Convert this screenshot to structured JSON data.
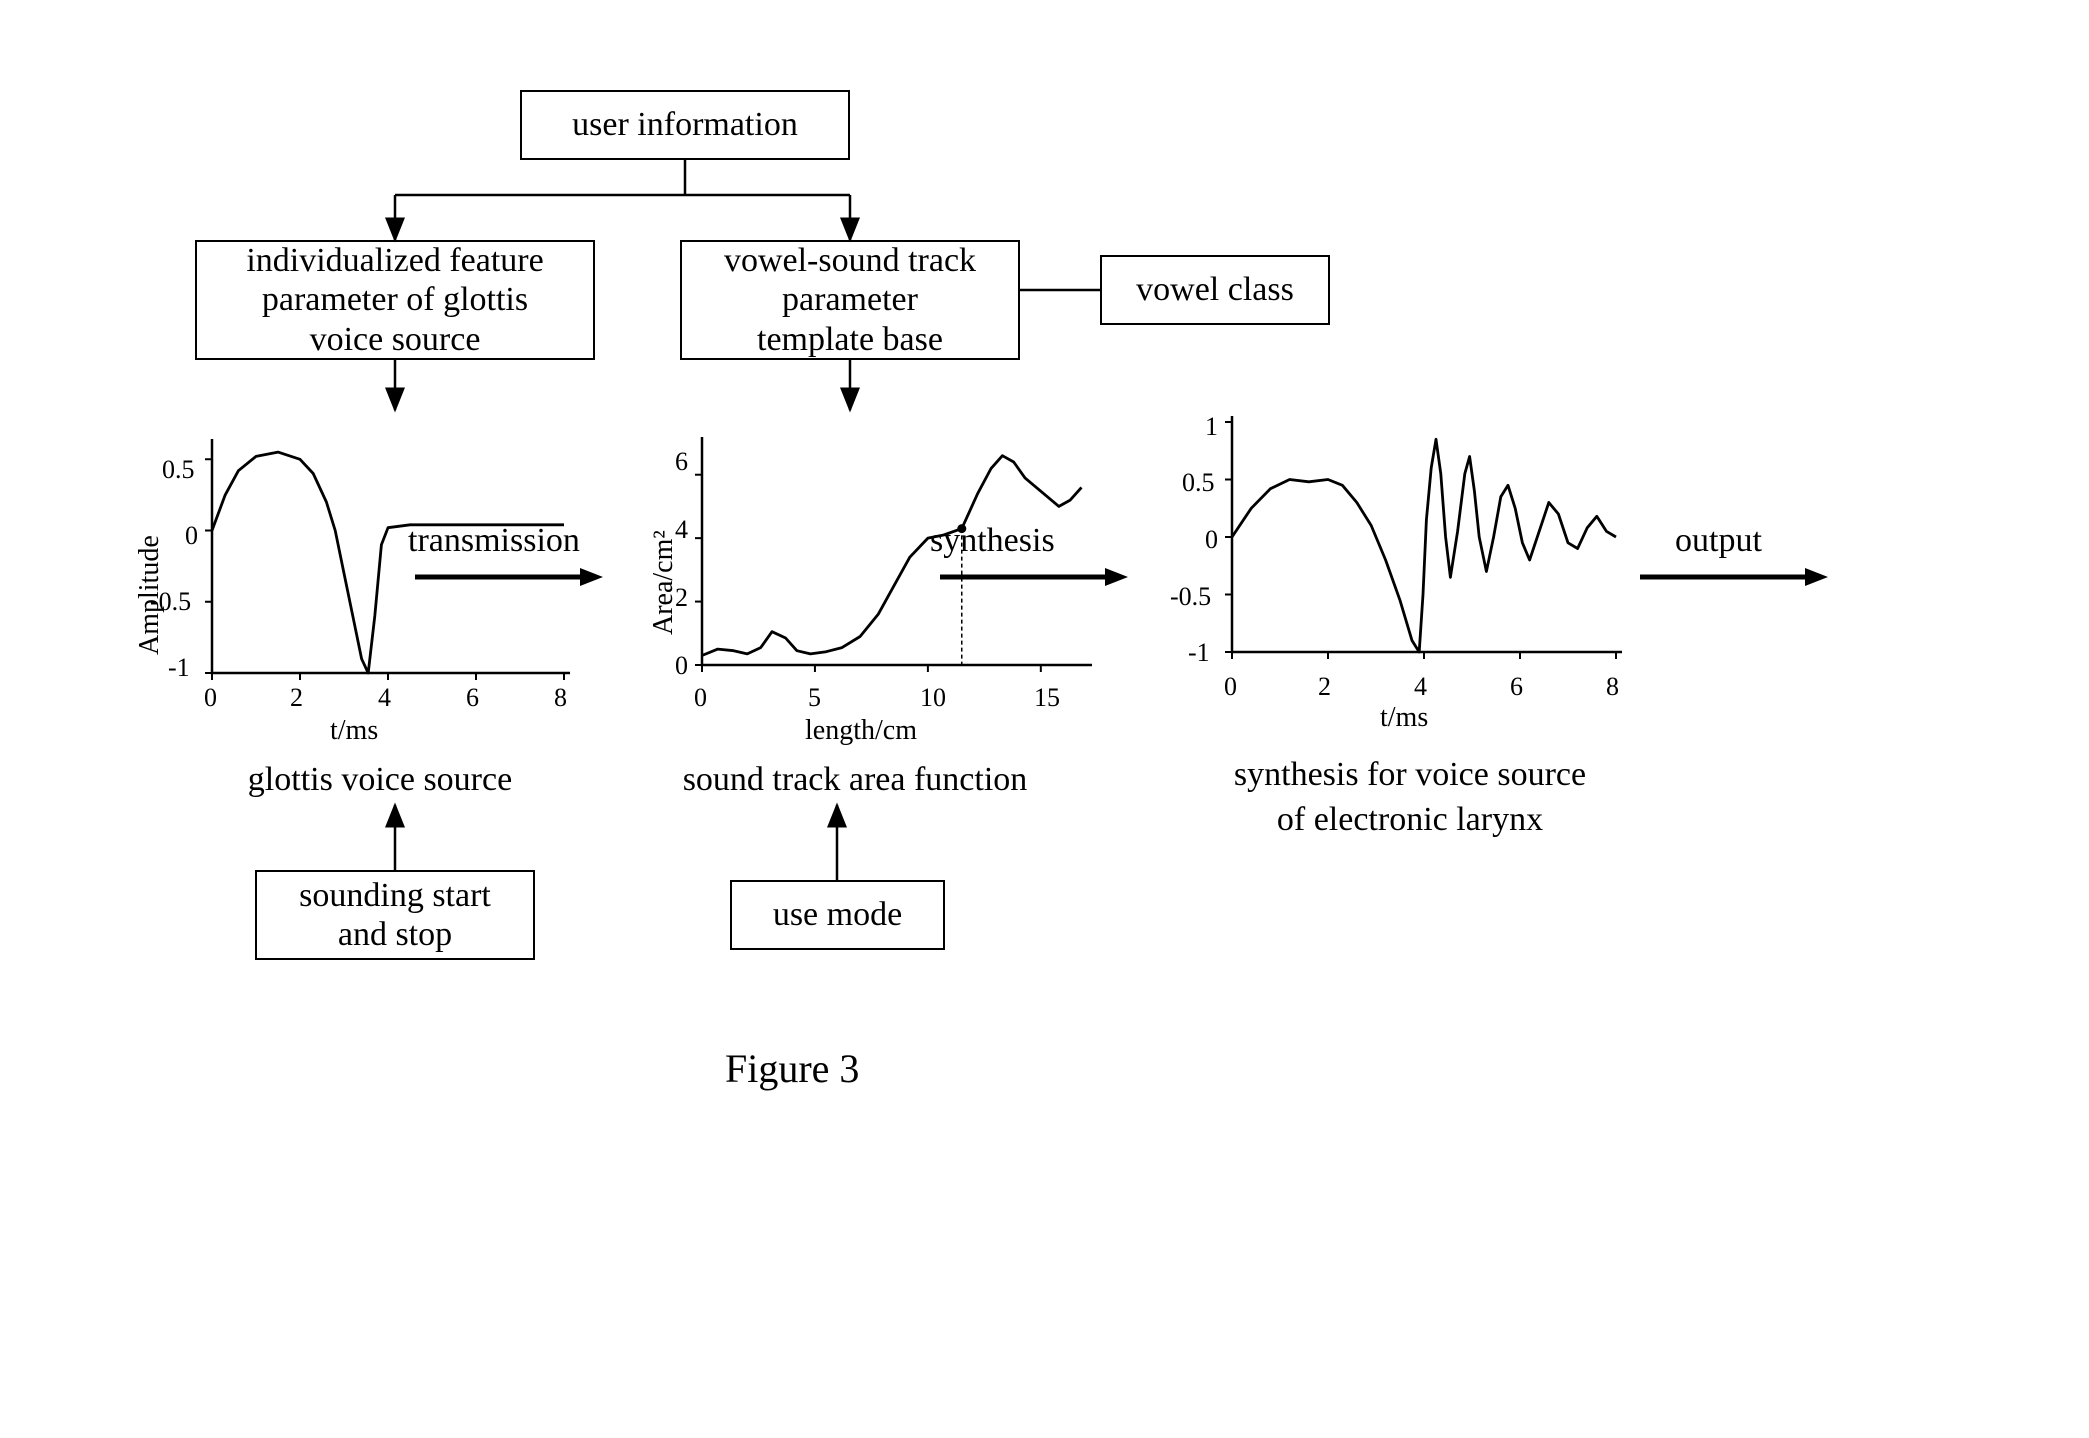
{
  "boxes": {
    "user_info": "user information",
    "glottis_param": "individualized feature\nparameter of glottis\nvoice source",
    "vowel_template": "vowel-sound track\nparameter\ntemplate base",
    "vowel_class": "vowel class",
    "sounding": "sounding start\nand stop",
    "use_mode": "use mode"
  },
  "labels": {
    "glottis_caption": "glottis voice source",
    "track_caption": "sound track area function",
    "synth_caption_line1": "synthesis for voice source",
    "synth_caption_line2": "of electronic larynx",
    "transmission": "transmission",
    "synthesis": "synthesis",
    "output": "output",
    "figure": "Figure 3"
  },
  "chart1": {
    "type": "line",
    "xlabel": "t/ms",
    "ylabel": "Amplitude",
    "xlim": [
      0,
      8
    ],
    "ylim": [
      -1,
      0.6
    ],
    "xticks": [
      0,
      2,
      4,
      6,
      8
    ],
    "yticks": [
      -1,
      -0.5,
      0,
      0.5
    ],
    "line_color": "#000000",
    "background_color": "#ffffff",
    "axis_color": "#000000",
    "data": [
      [
        0.0,
        0.0
      ],
      [
        0.3,
        0.25
      ],
      [
        0.6,
        0.42
      ],
      [
        1.0,
        0.52
      ],
      [
        1.5,
        0.55
      ],
      [
        2.0,
        0.5
      ],
      [
        2.3,
        0.4
      ],
      [
        2.6,
        0.2
      ],
      [
        2.8,
        0.0
      ],
      [
        3.0,
        -0.3
      ],
      [
        3.2,
        -0.6
      ],
      [
        3.4,
        -0.9
      ],
      [
        3.55,
        -1.0
      ],
      [
        3.7,
        -0.6
      ],
      [
        3.85,
        -0.1
      ],
      [
        4.0,
        0.02
      ],
      [
        4.5,
        0.04
      ],
      [
        5.0,
        0.04
      ],
      [
        6.0,
        0.04
      ],
      [
        7.0,
        0.04
      ],
      [
        8.0,
        0.04
      ]
    ]
  },
  "chart2": {
    "type": "line",
    "xlabel": "length/cm",
    "ylabel": "Area/cm²",
    "xlim": [
      0,
      17
    ],
    "ylim": [
      0,
      7
    ],
    "xticks": [
      0,
      5,
      10,
      15
    ],
    "yticks": [
      0,
      2,
      4,
      6
    ],
    "line_color": "#000000",
    "background_color": "#ffffff",
    "axis_color": "#000000",
    "marker_x": 11.5,
    "marker_y": 4.3,
    "data": [
      [
        0.0,
        0.3
      ],
      [
        0.7,
        0.5
      ],
      [
        1.4,
        0.45
      ],
      [
        2.0,
        0.35
      ],
      [
        2.6,
        0.55
      ],
      [
        3.1,
        1.05
      ],
      [
        3.7,
        0.85
      ],
      [
        4.2,
        0.45
      ],
      [
        4.8,
        0.35
      ],
      [
        5.5,
        0.42
      ],
      [
        6.2,
        0.55
      ],
      [
        7.0,
        0.9
      ],
      [
        7.8,
        1.6
      ],
      [
        8.5,
        2.5
      ],
      [
        9.2,
        3.4
      ],
      [
        10.0,
        4.0
      ],
      [
        10.7,
        4.1
      ],
      [
        11.5,
        4.3
      ],
      [
        12.2,
        5.4
      ],
      [
        12.8,
        6.2
      ],
      [
        13.3,
        6.6
      ],
      [
        13.8,
        6.4
      ],
      [
        14.3,
        5.9
      ],
      [
        14.8,
        5.6
      ],
      [
        15.3,
        5.3
      ],
      [
        15.8,
        5.0
      ],
      [
        16.3,
        5.2
      ],
      [
        16.8,
        5.6
      ]
    ]
  },
  "chart3": {
    "type": "line",
    "xlabel": "t/ms",
    "ylabel": "",
    "xlim": [
      0,
      8
    ],
    "ylim": [
      -1,
      1
    ],
    "xticks": [
      0,
      2,
      4,
      6,
      8
    ],
    "yticks": [
      -1,
      -0.5,
      0,
      0.5,
      1
    ],
    "line_color": "#000000",
    "background_color": "#ffffff",
    "axis_color": "#000000",
    "data": [
      [
        0.0,
        0.0
      ],
      [
        0.4,
        0.25
      ],
      [
        0.8,
        0.42
      ],
      [
        1.2,
        0.5
      ],
      [
        1.6,
        0.48
      ],
      [
        2.0,
        0.5
      ],
      [
        2.3,
        0.45
      ],
      [
        2.6,
        0.3
      ],
      [
        2.9,
        0.1
      ],
      [
        3.2,
        -0.2
      ],
      [
        3.5,
        -0.55
      ],
      [
        3.75,
        -0.9
      ],
      [
        3.9,
        -1.0
      ],
      [
        3.98,
        -0.5
      ],
      [
        4.05,
        0.15
      ],
      [
        4.15,
        0.6
      ],
      [
        4.25,
        0.85
      ],
      [
        4.35,
        0.55
      ],
      [
        4.45,
        0.0
      ],
      [
        4.55,
        -0.35
      ],
      [
        4.7,
        0.05
      ],
      [
        4.85,
        0.55
      ],
      [
        4.95,
        0.7
      ],
      [
        5.05,
        0.4
      ],
      [
        5.15,
        0.0
      ],
      [
        5.3,
        -0.3
      ],
      [
        5.45,
        0.0
      ],
      [
        5.6,
        0.35
      ],
      [
        5.75,
        0.45
      ],
      [
        5.9,
        0.25
      ],
      [
        6.05,
        -0.05
      ],
      [
        6.2,
        -0.2
      ],
      [
        6.4,
        0.05
      ],
      [
        6.6,
        0.3
      ],
      [
        6.8,
        0.2
      ],
      [
        7.0,
        -0.05
      ],
      [
        7.2,
        -0.1
      ],
      [
        7.4,
        0.08
      ],
      [
        7.6,
        0.18
      ],
      [
        7.8,
        0.05
      ],
      [
        8.0,
        0.0
      ]
    ]
  },
  "style": {
    "box_border_color": "#000000",
    "box_bg_color": "#ffffff",
    "text_color": "#000000",
    "font_family": "Times New Roman",
    "box_fontsize": 34,
    "caption_fontsize": 40,
    "line_width": 2.5,
    "arrow_width": 2.5
  }
}
